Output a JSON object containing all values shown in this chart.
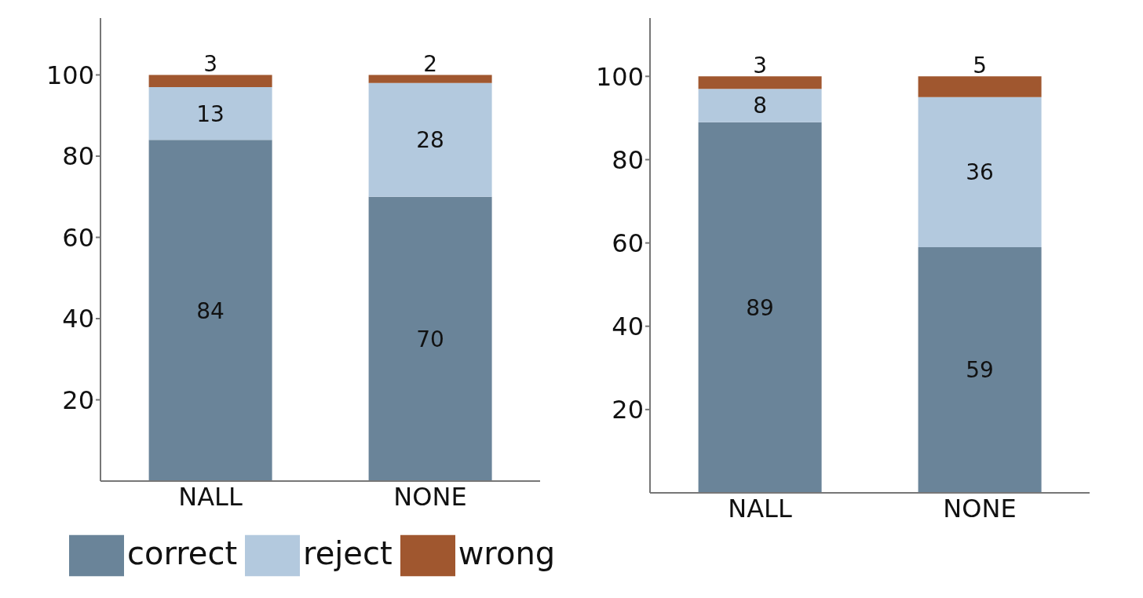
{
  "chart_data": [
    {
      "type": "bar",
      "stacked": true,
      "categories": [
        "NALL",
        "NONE"
      ],
      "ylim": [
        0,
        114
      ],
      "yticks": [
        20,
        40,
        60,
        80,
        100
      ],
      "data_labels": true,
      "legend": "bottom left",
      "series": [
        {
          "name": "correct",
          "color": "#6a8499",
          "values": [
            84,
            70
          ]
        },
        {
          "name": "reject",
          "color": "#b3c9de",
          "values": [
            13,
            28
          ]
        },
        {
          "name": "wrong",
          "color": "#a0572f",
          "values": [
            3,
            2
          ]
        }
      ]
    },
    {
      "type": "bar",
      "stacked": true,
      "categories": [
        "NALL",
        "NONE"
      ],
      "ylim": [
        0,
        114
      ],
      "yticks": [
        20,
        40,
        60,
        80,
        100
      ],
      "data_labels": true,
      "series": [
        {
          "color": "#6a8499",
          "values": [
            89,
            59
          ]
        },
        {
          "color": "#b3c9de",
          "values": [
            8,
            36
          ]
        },
        {
          "color": "#a0572f",
          "values": [
            3,
            5
          ]
        }
      ]
    }
  ]
}
